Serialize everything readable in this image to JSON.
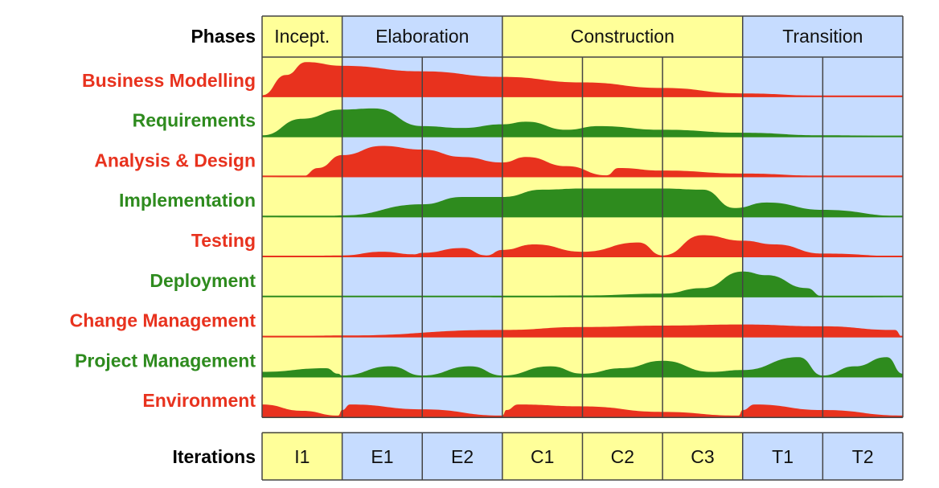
{
  "title_phases": "Phases",
  "title_iterations": "Iterations",
  "phases": [
    {
      "name": "Incept.",
      "iterations": 1
    },
    {
      "name": "Elaboration",
      "iterations": 2
    },
    {
      "name": "Construction",
      "iterations": 3
    },
    {
      "name": "Transition",
      "iterations": 2
    }
  ],
  "iterations": [
    "I1",
    "E1",
    "E2",
    "C1",
    "C2",
    "C3",
    "T1",
    "T2"
  ],
  "colors": {
    "inception_bg": "#ffff99",
    "elaboration_bg": "#c6dcff",
    "construction_bg": "#ffff99",
    "transition_bg": "#c6dcff",
    "red": "#e8321e",
    "green": "#2e8b1e",
    "grid": "#444444"
  },
  "disciplines": [
    {
      "name": "Business Modelling",
      "color": "red",
      "effort": [
        [
          0,
          0.05
        ],
        [
          0.3,
          0.6
        ],
        [
          0.55,
          0.95
        ],
        [
          1,
          0.85
        ],
        [
          2,
          0.7
        ],
        [
          3,
          0.55
        ],
        [
          4,
          0.4
        ],
        [
          5,
          0.25
        ],
        [
          6,
          0.1
        ],
        [
          7,
          0.04
        ],
        [
          8,
          0.02
        ]
      ]
    },
    {
      "name": "Requirements",
      "color": "green",
      "effort": [
        [
          0,
          0.05
        ],
        [
          0.5,
          0.5
        ],
        [
          1,
          0.75
        ],
        [
          1.4,
          0.78
        ],
        [
          2,
          0.3
        ],
        [
          2.5,
          0.25
        ],
        [
          3,
          0.35
        ],
        [
          3.3,
          0.42
        ],
        [
          3.8,
          0.2
        ],
        [
          4.2,
          0.3
        ],
        [
          5,
          0.2
        ],
        [
          6,
          0.12
        ],
        [
          7,
          0.05
        ],
        [
          8,
          0.03
        ]
      ]
    },
    {
      "name": "Analysis & Design",
      "color": "red",
      "effort": [
        [
          0,
          0
        ],
        [
          0.5,
          0.02
        ],
        [
          0.7,
          0.25
        ],
        [
          1,
          0.6
        ],
        [
          1.5,
          0.85
        ],
        [
          2,
          0.75
        ],
        [
          2.5,
          0.55
        ],
        [
          3,
          0.4
        ],
        [
          3.3,
          0.55
        ],
        [
          3.8,
          0.3
        ],
        [
          4.3,
          0.05
        ],
        [
          4.45,
          0.25
        ],
        [
          5,
          0.18
        ],
        [
          6,
          0.1
        ],
        [
          7,
          0.04
        ],
        [
          8,
          0.02
        ]
      ]
    },
    {
      "name": "Implementation",
      "color": "green",
      "effort": [
        [
          0,
          0
        ],
        [
          0.8,
          0.02
        ],
        [
          1,
          0.05
        ],
        [
          2,
          0.35
        ],
        [
          2.5,
          0.55
        ],
        [
          3,
          0.55
        ],
        [
          3.5,
          0.75
        ],
        [
          4,
          0.78
        ],
        [
          5,
          0.78
        ],
        [
          5.5,
          0.75
        ],
        [
          5.9,
          0.25
        ],
        [
          6.3,
          0.4
        ],
        [
          7,
          0.2
        ],
        [
          8,
          0.03
        ]
      ]
    },
    {
      "name": "Testing",
      "color": "red",
      "effort": [
        [
          0,
          0
        ],
        [
          1,
          0.05
        ],
        [
          1.5,
          0.15
        ],
        [
          1.9,
          0.08
        ],
        [
          2,
          0.12
        ],
        [
          2.5,
          0.25
        ],
        [
          2.8,
          0.05
        ],
        [
          3,
          0.2
        ],
        [
          3.4,
          0.35
        ],
        [
          4,
          0.15
        ],
        [
          4.7,
          0.4
        ],
        [
          5,
          0.05
        ],
        [
          5.5,
          0.6
        ],
        [
          6,
          0.45
        ],
        [
          6.4,
          0.35
        ],
        [
          7,
          0.1
        ],
        [
          8,
          0.03
        ]
      ]
    },
    {
      "name": "Deployment",
      "color": "green",
      "effort": [
        [
          0,
          0
        ],
        [
          2.8,
          0
        ],
        [
          3,
          0.02
        ],
        [
          4,
          0.05
        ],
        [
          5,
          0.1
        ],
        [
          5.5,
          0.25
        ],
        [
          6,
          0.7
        ],
        [
          6.3,
          0.6
        ],
        [
          6.8,
          0.25
        ],
        [
          7,
          0.02
        ],
        [
          8,
          0
        ]
      ]
    },
    {
      "name": "Change Management",
      "color": "red",
      "effort": [
        [
          0,
          0
        ],
        [
          1,
          0.05
        ],
        [
          3,
          0.2
        ],
        [
          4,
          0.28
        ],
        [
          5,
          0.32
        ],
        [
          6,
          0.35
        ],
        [
          7,
          0.3
        ],
        [
          7.9,
          0.2
        ],
        [
          8,
          0
        ]
      ]
    },
    {
      "name": "Project Management",
      "color": "green",
      "effort": [
        [
          0,
          0.15
        ],
        [
          0.8,
          0.25
        ],
        [
          0.95,
          0.1
        ],
        [
          1,
          0.05
        ],
        [
          1.6,
          0.3
        ],
        [
          2,
          0.05
        ],
        [
          2.6,
          0.3
        ],
        [
          3,
          0.05
        ],
        [
          3.6,
          0.3
        ],
        [
          4,
          0.1
        ],
        [
          4.5,
          0.25
        ],
        [
          5,
          0.45
        ],
        [
          5.6,
          0.15
        ],
        [
          6,
          0.2
        ],
        [
          6.7,
          0.55
        ],
        [
          7,
          0.05
        ],
        [
          7.4,
          0.3
        ],
        [
          7.8,
          0.55
        ],
        [
          8,
          0.1
        ]
      ]
    },
    {
      "name": "Environment",
      "color": "red",
      "effort": [
        [
          0,
          0.35
        ],
        [
          0.5,
          0.18
        ],
        [
          0.95,
          0.05
        ],
        [
          1,
          0.2
        ],
        [
          1.1,
          0.35
        ],
        [
          2,
          0.22
        ],
        [
          3,
          0.05
        ],
        [
          3.05,
          0.2
        ],
        [
          3.2,
          0.35
        ],
        [
          4,
          0.3
        ],
        [
          5,
          0.15
        ],
        [
          5.95,
          0.05
        ],
        [
          6,
          0.2
        ],
        [
          6.15,
          0.35
        ],
        [
          7,
          0.2
        ],
        [
          8,
          0.05
        ]
      ]
    }
  ]
}
